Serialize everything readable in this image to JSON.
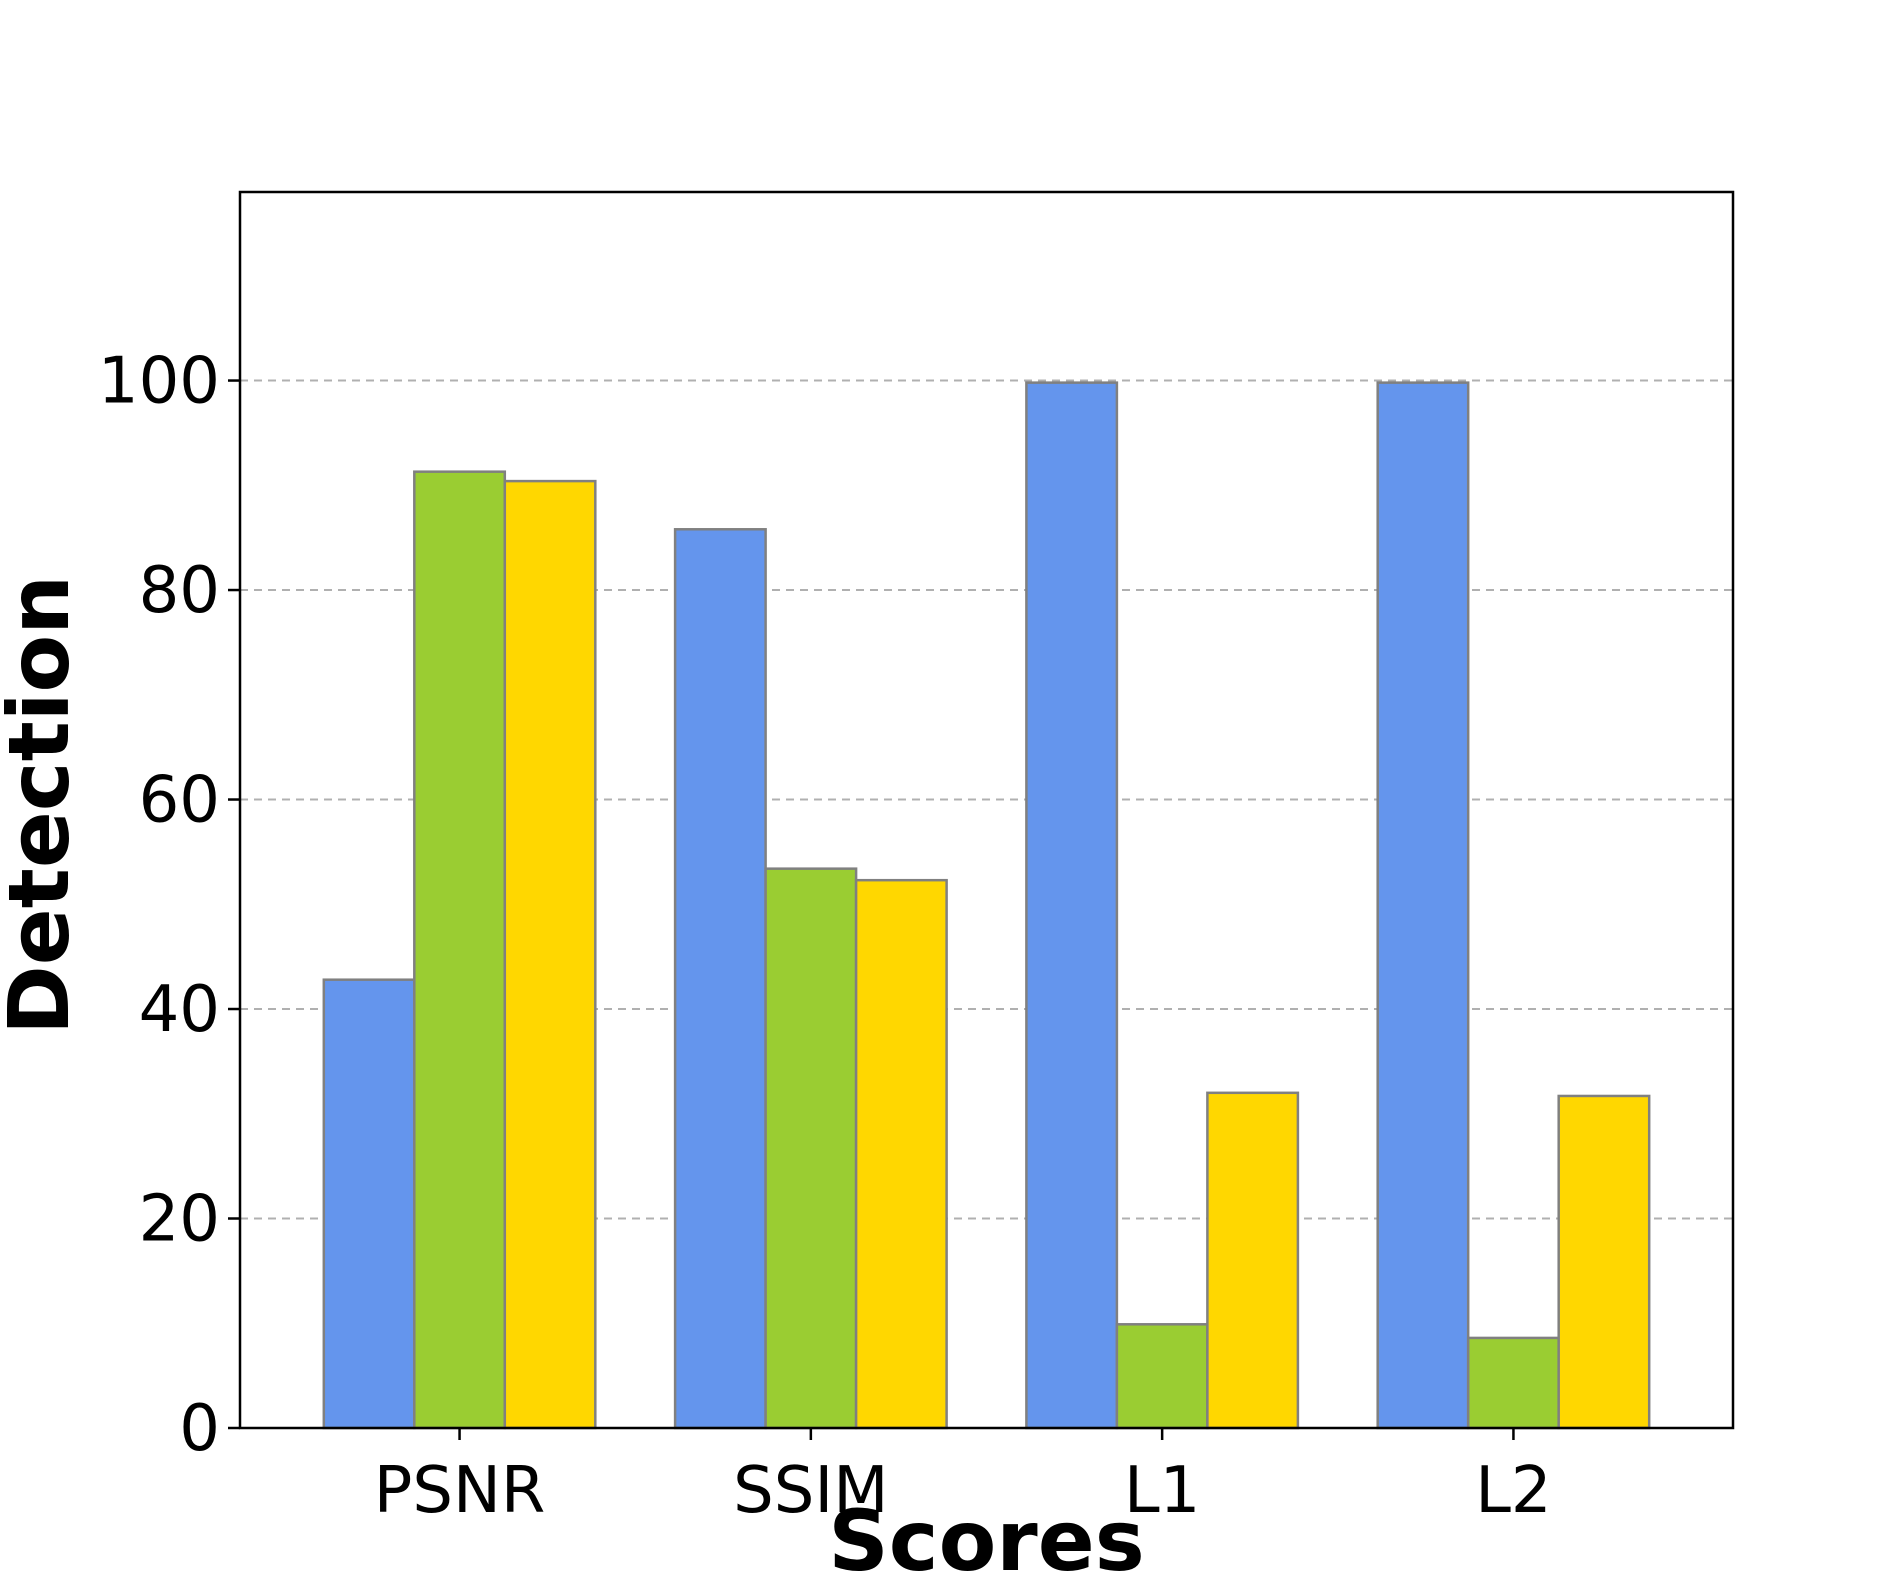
{
  "chart_data": {
    "type": "bar",
    "title": "",
    "xlabel": "Scores",
    "ylabel": "Detection",
    "categories": [
      "PSNR",
      "SSIM",
      "L1",
      "L2"
    ],
    "series": [
      {
        "values": [
          42.8,
          85.8,
          99.8,
          99.8
        ],
        "color": "#6495ED"
      },
      {
        "values": [
          91.3,
          53.4,
          9.9,
          8.6
        ],
        "color": "#9ACD32"
      },
      {
        "values": [
          90.4,
          52.3,
          32.0,
          31.7
        ],
        "color": "#FFD700"
      }
    ],
    "ylim": [
      0,
      118
    ],
    "yticks": [
      0,
      20,
      40,
      60,
      80,
      100
    ],
    "grid": true,
    "grid_axis": "y",
    "legend": false
  }
}
